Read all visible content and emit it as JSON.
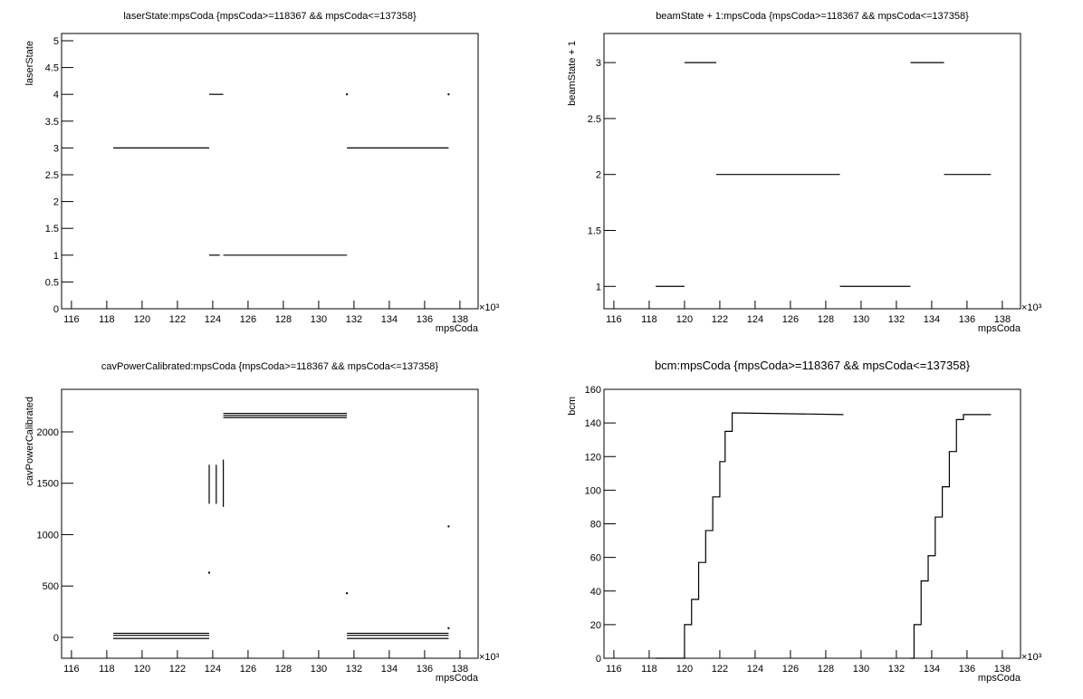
{
  "chart_data": [
    {
      "type": "line",
      "title": "laserState:mpsCoda {mpsCoda>=118367 && mpsCoda<=137358}",
      "x_label": "mpsCoda",
      "y_label": "laserState",
      "x_multiplier": "×10³",
      "color": "#000000",
      "x": [
        118.367,
        123.8,
        null,
        123.8,
        124.6,
        null,
        123.8,
        124.4,
        null,
        124.6,
        131.6,
        null,
        131.6,
        137.358,
        null,
        131.6,
        null,
        137.358
      ],
      "values": [
        3,
        3,
        null,
        4,
        4,
        null,
        1,
        1,
        null,
        1,
        1,
        null,
        3,
        3,
        null,
        4,
        null,
        4
      ],
      "xlim": [
        115.44,
        139.03
      ],
      "xticks": [
        116,
        118,
        120,
        122,
        124,
        126,
        128,
        130,
        132,
        134,
        136,
        138
      ],
      "ylim": [
        0,
        5.135
      ],
      "yticks": [
        0,
        0.5,
        1,
        1.5,
        2,
        2.5,
        3,
        3.5,
        4,
        4.5,
        5
      ]
    },
    {
      "type": "line",
      "title": "beamState + 1:mpsCoda {mpsCoda>=118367 && mpsCoda<=137358}",
      "x_label": "mpsCoda",
      "y_label": "beamState + 1",
      "x_multiplier": "×10³",
      "color": "#000000",
      "x": [
        118.367,
        120.0,
        null,
        120.0,
        121.8,
        null,
        121.8,
        128.8,
        null,
        128.8,
        132.8,
        null,
        132.8,
        134.7,
        null,
        134.7,
        137.358
      ],
      "values": [
        1,
        1,
        null,
        3,
        3,
        null,
        2,
        2,
        null,
        1,
        1,
        null,
        3,
        3,
        null,
        2,
        2
      ],
      "xlim": [
        115.44,
        139.03
      ],
      "xticks": [
        116,
        118,
        120,
        122,
        124,
        126,
        128,
        130,
        132,
        134,
        136,
        138
      ],
      "ylim": [
        0.8,
        3.26
      ],
      "yticks": [
        1,
        1.5,
        2,
        2.5,
        3
      ]
    },
    {
      "type": "line",
      "title": "cavPowerCalibrated:mpsCoda {mpsCoda>=118367 && mpsCoda<=137358}",
      "x_label": "mpsCoda",
      "y_label": "cavPowerCalibrated",
      "x_multiplier": "×10³",
      "color": "#000000",
      "x": [
        118.367,
        123.8,
        null,
        118.367,
        123.8,
        null,
        118.367,
        123.8,
        null,
        123.8,
        123.8,
        null,
        124.2,
        124.2,
        null,
        124.6,
        124.6,
        null,
        124.6,
        131.6,
        null,
        124.6,
        131.6,
        null,
        124.6,
        131.6,
        null,
        131.6,
        137.358,
        null,
        131.6,
        137.358,
        null,
        131.6,
        137.358,
        null,
        123.8,
        null,
        131.6,
        null,
        137.358,
        null,
        137.358
      ],
      "values": [
        40,
        40,
        null,
        20,
        20,
        null,
        -10,
        -10,
        null,
        1300,
        1680,
        null,
        1300,
        1680,
        null,
        1270,
        1730,
        null,
        2180,
        2180,
        null,
        2160,
        2160,
        null,
        2140,
        2140,
        null,
        40,
        40,
        null,
        20,
        20,
        null,
        -10,
        -10,
        null,
        630,
        null,
        430,
        null,
        1080,
        null,
        90
      ],
      "xlim": [
        115.44,
        139.03
      ],
      "xticks": [
        116,
        118,
        120,
        122,
        124,
        126,
        128,
        130,
        132,
        134,
        136,
        138
      ],
      "ylim": [
        -203,
        2414
      ],
      "yticks": [
        0,
        500,
        1000,
        1500,
        2000
      ]
    },
    {
      "type": "line",
      "title": "bcm:mpsCoda {mpsCoda>=118367 && mpsCoda<=137358}",
      "x_label": "mpsCoda",
      "y_label": "bcm",
      "x_multiplier": "×10³",
      "color": "#000000",
      "x": [
        118.367,
        120.0,
        120.0,
        120.4,
        120.4,
        120.8,
        120.8,
        121.2,
        121.2,
        121.6,
        121.6,
        122.0,
        122.0,
        122.3,
        122.3,
        122.7,
        122.7,
        129.0,
        null,
        132.8,
        133.0,
        133.0,
        133.4,
        133.4,
        133.8,
        133.8,
        134.2,
        134.2,
        134.6,
        134.6,
        135.0,
        135.0,
        135.4,
        135.4,
        135.8,
        135.8,
        137.358
      ],
      "values": [
        0,
        0,
        20,
        20,
        35,
        35,
        57,
        57,
        76,
        76,
        96,
        96,
        117,
        117,
        135,
        135,
        146,
        145,
        null,
        0,
        0,
        20,
        20,
        46,
        46,
        61,
        61,
        84,
        84,
        102,
        102,
        123,
        123,
        142,
        142,
        145,
        145
      ],
      "xlim": [
        115.44,
        139.03
      ],
      "xticks": [
        116,
        118,
        120,
        122,
        124,
        126,
        128,
        130,
        132,
        134,
        136,
        138
      ],
      "ylim": [
        0,
        160
      ],
      "yticks": [
        0,
        20,
        40,
        60,
        80,
        100,
        120,
        140,
        160
      ]
    }
  ]
}
